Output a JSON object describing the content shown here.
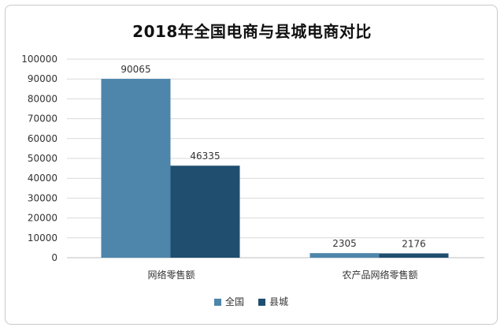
{
  "chart_data": {
    "type": "bar",
    "title": "2018年全国电商与县城电商对比",
    "categories": [
      "网络零售额",
      "农产品网络零售额"
    ],
    "series": [
      {
        "name": "全国",
        "values": [
          90065,
          2305
        ],
        "color": "#4e85ab"
      },
      {
        "name": "县城",
        "values": [
          46335,
          2176
        ],
        "color": "#1f4e6f"
      }
    ],
    "ylim": [
      0,
      100000
    ],
    "yticks": [
      0,
      10000,
      20000,
      30000,
      40000,
      50000,
      60000,
      70000,
      80000,
      90000,
      100000
    ],
    "grid": true,
    "legend": "bottom"
  }
}
